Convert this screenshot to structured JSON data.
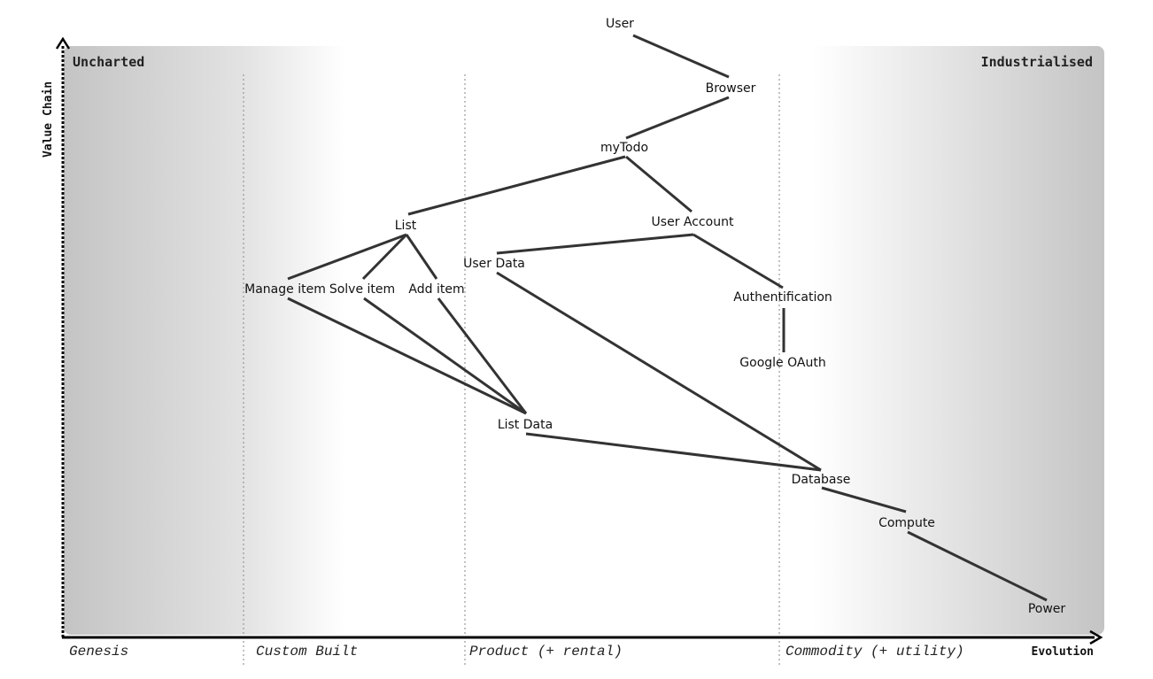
{
  "map": {
    "y_axis_label": "Value Chain",
    "x_axis_label": "Evolution",
    "corner_left": "Uncharted",
    "corner_right": "Industrialised",
    "stages": [
      "Genesis",
      "Custom Built",
      "Product (+ rental)",
      "Commodity (+ utility)"
    ]
  },
  "components": [
    {
      "id": "user",
      "label": "User"
    },
    {
      "id": "browser",
      "label": "Browser"
    },
    {
      "id": "mytodo",
      "label": "myTodo"
    },
    {
      "id": "list",
      "label": "List"
    },
    {
      "id": "user-account",
      "label": "User Account"
    },
    {
      "id": "user-data",
      "label": "User Data"
    },
    {
      "id": "manage-item",
      "label": "Manage item"
    },
    {
      "id": "solve-item",
      "label": "Solve item"
    },
    {
      "id": "add-item",
      "label": "Add item"
    },
    {
      "id": "authentification",
      "label": "Authentification"
    },
    {
      "id": "google-oauth",
      "label": "Google OAuth"
    },
    {
      "id": "list-data",
      "label": "List Data"
    },
    {
      "id": "database",
      "label": "Database"
    },
    {
      "id": "compute",
      "label": "Compute"
    },
    {
      "id": "power",
      "label": "Power"
    }
  ],
  "links": [
    [
      "user",
      "browser"
    ],
    [
      "browser",
      "mytodo"
    ],
    [
      "mytodo",
      "list"
    ],
    [
      "mytodo",
      "user-account"
    ],
    [
      "user-account",
      "user-data"
    ],
    [
      "user-account",
      "authentification"
    ],
    [
      "authentification",
      "google-oauth"
    ],
    [
      "list",
      "manage-item"
    ],
    [
      "list",
      "solve-item"
    ],
    [
      "list",
      "add-item"
    ],
    [
      "manage-item",
      "list-data"
    ],
    [
      "solve-item",
      "list-data"
    ],
    [
      "add-item",
      "list-data"
    ],
    [
      "user-data",
      "database"
    ],
    [
      "list-data",
      "database"
    ],
    [
      "database",
      "compute"
    ],
    [
      "compute",
      "power"
    ]
  ]
}
